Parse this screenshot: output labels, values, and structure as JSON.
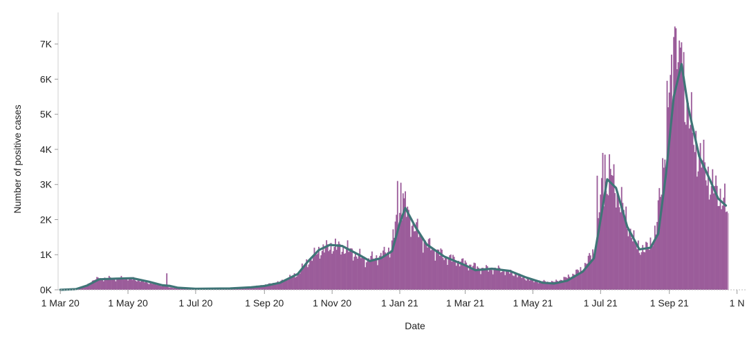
{
  "chart_data": {
    "type": "bar",
    "overlay": "line",
    "xlabel": "Date",
    "ylabel": "Number of positive cases",
    "x_tick_labels": [
      "1 Mar 20",
      "1 May 20",
      "1 Jul 20",
      "1 Sep 20",
      "1 Nov 20",
      "1 Jan 21",
      "1 Mar 21",
      "1 May 21",
      "1 Jul 21",
      "1 Sep 21",
      "1 N"
    ],
    "x_tick_dates": [
      "2020-03-01",
      "2020-05-01",
      "2020-07-01",
      "2020-09-01",
      "2020-11-01",
      "2021-01-01",
      "2021-03-01",
      "2021-05-01",
      "2021-07-01",
      "2021-09-01",
      "2021-11-01"
    ],
    "y_tick_labels": [
      "0K",
      "1K",
      "2K",
      "3K",
      "4K",
      "5K",
      "6K",
      "7K"
    ],
    "y_tick_values": [
      0,
      1000,
      2000,
      3000,
      4000,
      5000,
      6000,
      7000
    ],
    "ylim": [
      0,
      7900
    ],
    "xlim": [
      "2020-02-28",
      "2021-11-10"
    ],
    "grid": false,
    "colors": {
      "bars": "#9b5c9a",
      "bar_last": "#c9a4c7",
      "line": "#3f7577"
    },
    "series": [
      {
        "kind": "daily_bars",
        "start_date": "2020-03-01",
        "end_date": "2021-10-24",
        "anchors": [
          [
            "2020-03-01",
            0
          ],
          [
            "2020-03-15",
            20
          ],
          [
            "2020-03-25",
            130
          ],
          [
            "2020-04-01",
            300
          ],
          [
            "2020-04-10",
            330
          ],
          [
            "2020-04-20",
            320
          ],
          [
            "2020-05-01",
            330
          ],
          [
            "2020-05-10",
            280
          ],
          [
            "2020-05-20",
            200
          ],
          [
            "2020-06-01",
            120
          ],
          [
            "2020-06-08",
            70
          ],
          [
            "2020-06-20",
            40
          ],
          [
            "2020-07-10",
            20
          ],
          [
            "2020-08-01",
            40
          ],
          [
            "2020-08-20",
            80
          ],
          [
            "2020-09-01",
            130
          ],
          [
            "2020-09-15",
            220
          ],
          [
            "2020-10-01",
            450
          ],
          [
            "2020-10-10",
            800
          ],
          [
            "2020-10-20",
            1100
          ],
          [
            "2020-11-01",
            1250
          ],
          [
            "2020-11-15",
            1150
          ],
          [
            "2020-12-01",
            850
          ],
          [
            "2020-12-15",
            950
          ],
          [
            "2020-12-24",
            1200
          ],
          [
            "2021-01-01",
            2300
          ],
          [
            "2021-01-05",
            2400
          ],
          [
            "2021-01-12",
            1900
          ],
          [
            "2021-01-25",
            1300
          ],
          [
            "2021-02-10",
            950
          ],
          [
            "2021-03-01",
            750
          ],
          [
            "2021-03-15",
            600
          ],
          [
            "2021-04-01",
            580
          ],
          [
            "2021-04-15",
            450
          ],
          [
            "2021-05-01",
            250
          ],
          [
            "2021-05-20",
            220
          ],
          [
            "2021-06-01",
            350
          ],
          [
            "2021-06-15",
            600
          ],
          [
            "2021-06-25",
            1100
          ],
          [
            "2021-07-02",
            2700
          ],
          [
            "2021-07-10",
            3300
          ],
          [
            "2021-07-20",
            2400
          ],
          [
            "2021-08-01",
            1300
          ],
          [
            "2021-08-10",
            1100
          ],
          [
            "2021-08-20",
            1600
          ],
          [
            "2021-08-25",
            3200
          ],
          [
            "2021-09-01",
            5500
          ],
          [
            "2021-09-08",
            6900
          ],
          [
            "2021-09-14",
            6000
          ],
          [
            "2021-09-22",
            4300
          ],
          [
            "2021-10-01",
            3600
          ],
          [
            "2021-10-10",
            2900
          ],
          [
            "2021-10-20",
            2600
          ],
          [
            "2021-10-24",
            2000
          ]
        ],
        "spikes": [
          [
            "2020-06-05",
            470
          ],
          [
            "2020-12-30",
            3100
          ],
          [
            "2021-01-02",
            3050
          ],
          [
            "2021-01-04",
            2750
          ],
          [
            "2021-06-28",
            3250
          ],
          [
            "2021-07-03",
            3900
          ],
          [
            "2021-07-05",
            3850
          ],
          [
            "2021-08-29",
            3500
          ],
          [
            "2021-09-05",
            7200
          ],
          [
            "2021-09-06",
            7500
          ],
          [
            "2021-09-07",
            7450
          ],
          [
            "2021-09-10",
            7100
          ],
          [
            "2021-09-11",
            6900
          ],
          [
            "2021-09-12",
            7050
          ]
        ]
      },
      {
        "kind": "rolling_average_line",
        "points": [
          [
            "2020-03-01",
            0
          ],
          [
            "2020-03-15",
            20
          ],
          [
            "2020-03-25",
            120
          ],
          [
            "2020-04-05",
            300
          ],
          [
            "2020-04-20",
            320
          ],
          [
            "2020-05-05",
            330
          ],
          [
            "2020-05-20",
            230
          ],
          [
            "2020-06-01",
            130
          ],
          [
            "2020-06-08",
            110
          ],
          [
            "2020-06-15",
            60
          ],
          [
            "2020-07-01",
            30
          ],
          [
            "2020-08-01",
            40
          ],
          [
            "2020-08-20",
            70
          ],
          [
            "2020-09-01",
            110
          ],
          [
            "2020-09-15",
            200
          ],
          [
            "2020-10-01",
            450
          ],
          [
            "2020-10-10",
            800
          ],
          [
            "2020-10-20",
            1130
          ],
          [
            "2020-10-30",
            1280
          ],
          [
            "2020-11-10",
            1250
          ],
          [
            "2020-11-25",
            1000
          ],
          [
            "2020-12-05",
            820
          ],
          [
            "2020-12-15",
            900
          ],
          [
            "2020-12-25",
            1100
          ],
          [
            "2021-01-01",
            1900
          ],
          [
            "2021-01-06",
            2330
          ],
          [
            "2021-01-15",
            1800
          ],
          [
            "2021-01-25",
            1300
          ],
          [
            "2021-02-10",
            950
          ],
          [
            "2021-03-01",
            700
          ],
          [
            "2021-03-10",
            560
          ],
          [
            "2021-03-25",
            600
          ],
          [
            "2021-04-10",
            540
          ],
          [
            "2021-04-25",
            350
          ],
          [
            "2021-05-10",
            200
          ],
          [
            "2021-05-20",
            180
          ],
          [
            "2021-06-01",
            260
          ],
          [
            "2021-06-15",
            520
          ],
          [
            "2021-06-25",
            900
          ],
          [
            "2021-07-01",
            2000
          ],
          [
            "2021-07-07",
            3150
          ],
          [
            "2021-07-15",
            2900
          ],
          [
            "2021-07-25",
            1800
          ],
          [
            "2021-08-05",
            1150
          ],
          [
            "2021-08-15",
            1200
          ],
          [
            "2021-08-22",
            1600
          ],
          [
            "2021-08-29",
            3300
          ],
          [
            "2021-09-05",
            5500
          ],
          [
            "2021-09-12",
            6430
          ],
          [
            "2021-09-18",
            5200
          ],
          [
            "2021-09-28",
            3800
          ],
          [
            "2021-10-08",
            3100
          ],
          [
            "2021-10-15",
            2600
          ],
          [
            "2021-10-22",
            2400
          ]
        ]
      }
    ]
  }
}
